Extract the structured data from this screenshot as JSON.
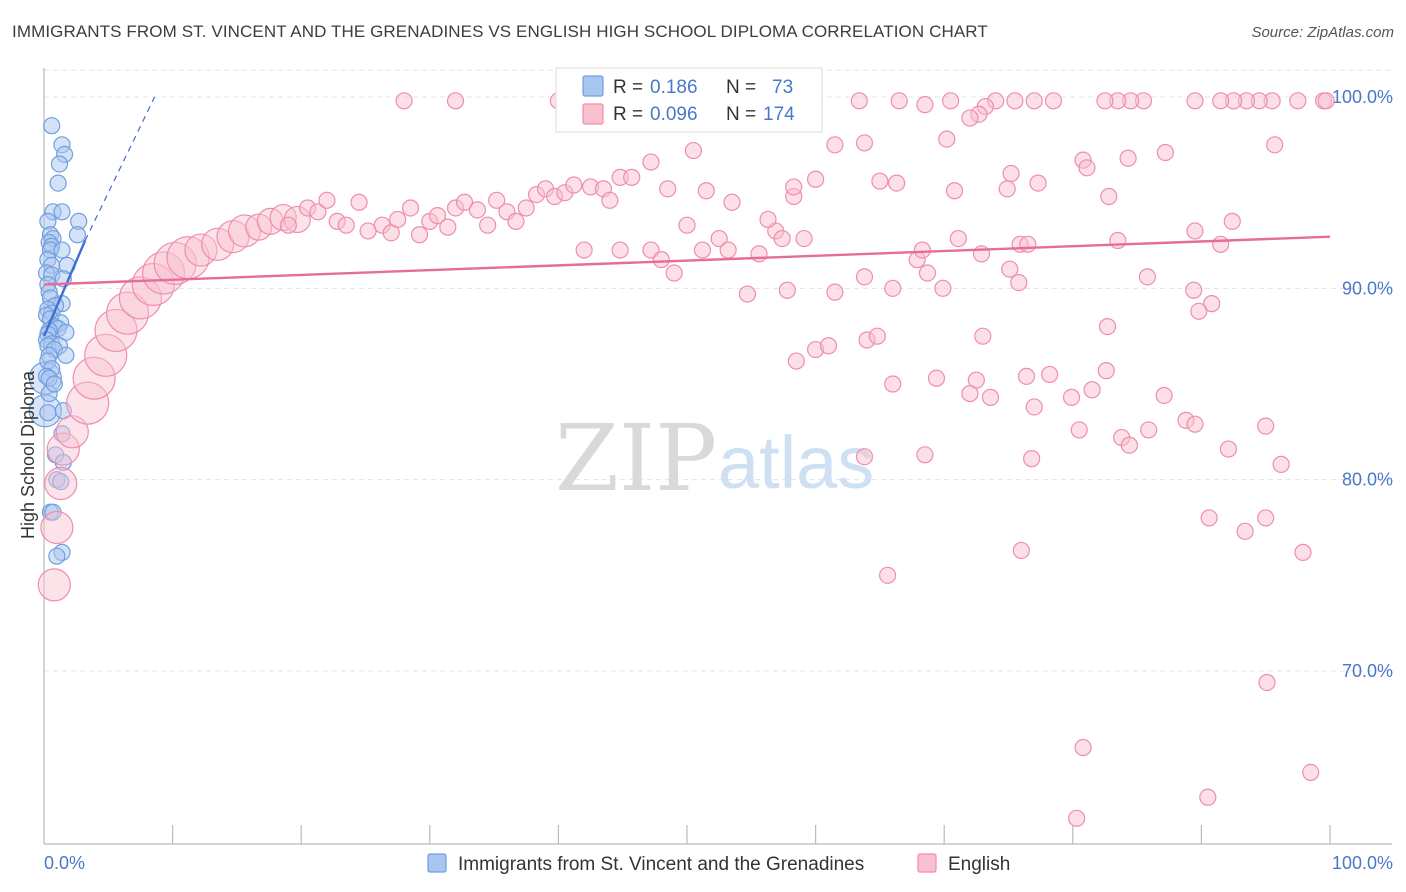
{
  "header": {
    "title": "IMMIGRANTS FROM ST. VINCENT AND THE GRENADINES VS ENGLISH HIGH SCHOOL DIPLOMA CORRELATION CHART",
    "source": "Source: ZipAtlas.com"
  },
  "watermark": {
    "zip": "ZIP",
    "atlas": "atlas"
  },
  "stats": [
    {
      "r_label": "R = ",
      "r_value": "0.186",
      "n_label": "N = ",
      "n_value": "73",
      "color": "#a9c6f0",
      "stroke": "#6f9fe0"
    },
    {
      "r_label": "R = ",
      "r_value": "0.096",
      "n_label": "N = ",
      "n_value": "174",
      "color": "#f9c0d0",
      "stroke": "#ee8eab"
    }
  ],
  "chart_data": {
    "type": "scatter",
    "title": "IMMIGRANTS FROM ST. VINCENT AND THE GRENADINES VS ENGLISH HIGH SCHOOL DIPLOMA CORRELATION CHART",
    "xlabel": "",
    "ylabel": "High School Diploma",
    "xlim": [
      0,
      100
    ],
    "ylim": [
      62,
      101.5
    ],
    "grid": true,
    "x_tick_labels": [
      {
        "value": 0,
        "label": "0.0%"
      },
      {
        "value": 100,
        "label": "100.0%"
      }
    ],
    "x_minor_ticks": [
      10,
      20,
      30,
      40,
      50,
      60,
      70,
      80,
      90
    ],
    "y_ticks": [
      {
        "value": 100,
        "label": "100.0%"
      },
      {
        "value": 90,
        "label": "90.0%"
      },
      {
        "value": 80,
        "label": "80.0%"
      },
      {
        "value": 70,
        "label": "70.0%"
      }
    ],
    "series": [
      {
        "name": "Immigrants from St. Vincent and the Grenadines",
        "color": "#6f9fe0",
        "fill": "#a9c6f0",
        "trend": {
          "x": [
            0,
            3.2
          ],
          "y": [
            87.5,
            92.5
          ],
          "color": "#3f6fd4"
        },
        "trend_ext": {
          "x": [
            3.2,
            8.6
          ],
          "y": [
            92.5,
            100
          ]
        },
        "points": [
          [
            0.6,
            98.5
          ],
          [
            1.4,
            97.5
          ],
          [
            1.6,
            97.0
          ],
          [
            1.2,
            96.5
          ],
          [
            1.1,
            95.5
          ],
          [
            0.7,
            94.0
          ],
          [
            1.4,
            94.0
          ],
          [
            2.7,
            93.5
          ],
          [
            0.3,
            93.5
          ],
          [
            2.6,
            92.8
          ],
          [
            0.5,
            92.8
          ],
          [
            0.7,
            92.6
          ],
          [
            0.4,
            92.4
          ],
          [
            0.6,
            92.2
          ],
          [
            0.5,
            92.0
          ],
          [
            1.4,
            92.0
          ],
          [
            0.3,
            91.5
          ],
          [
            0.6,
            91.2
          ],
          [
            1.8,
            91.2
          ],
          [
            0.2,
            90.8
          ],
          [
            0.6,
            90.7
          ],
          [
            1.5,
            90.5
          ],
          [
            0.3,
            90.2
          ],
          [
            0.4,
            89.8
          ],
          [
            0.5,
            89.5
          ],
          [
            1.4,
            89.2
          ],
          [
            0.9,
            89.1
          ],
          [
            0.3,
            88.9
          ],
          [
            0.6,
            88.7
          ],
          [
            0.2,
            88.6
          ],
          [
            0.5,
            88.4
          ],
          [
            1.3,
            88.2
          ],
          [
            0.8,
            88.0
          ],
          [
            1.1,
            87.9
          ],
          [
            0.4,
            87.8
          ],
          [
            1.7,
            87.7
          ],
          [
            0.3,
            87.6
          ],
          [
            0.2,
            87.3
          ],
          [
            0.6,
            87.1
          ],
          [
            0.3,
            87.0
          ],
          [
            1.2,
            87.0
          ],
          [
            0.8,
            86.8
          ],
          [
            0.4,
            86.5
          ],
          [
            1.7,
            86.5
          ],
          [
            0.3,
            86.2
          ],
          [
            0.6,
            85.8
          ],
          [
            0.2,
            85.4
          ],
          [
            0.4,
            85.3
          ],
          [
            1.5,
            83.6
          ],
          [
            0.3,
            83.5
          ],
          [
            1.4,
            82.4
          ],
          [
            0.9,
            81.3
          ],
          [
            1.5,
            80.9
          ],
          [
            1.0,
            80.0
          ],
          [
            1.3,
            79.9
          ],
          [
            0.5,
            78.3
          ],
          [
            0.7,
            78.3
          ],
          [
            1.4,
            76.2
          ],
          [
            1.0,
            76.0
          ],
          [
            0.4,
            84.5
          ],
          [
            0.8,
            85.0
          ]
        ],
        "large_points": [
          {
            "x": 0.1,
            "y": 85.3,
            "size": "l"
          },
          {
            "x": 0.1,
            "y": 83.6,
            "size": "l"
          }
        ]
      },
      {
        "name": "English",
        "color": "#ee8eab",
        "fill": "#f9c0d0",
        "trend": {
          "x": [
            0,
            100
          ],
          "y": [
            90.2,
            92.7
          ],
          "color": "#e66d98"
        },
        "large_points": [
          {
            "x": 0.8,
            "y": 74.5,
            "size": "l"
          },
          {
            "x": 1.0,
            "y": 77.5,
            "size": "l"
          },
          {
            "x": 1.3,
            "y": 79.8,
            "size": "l"
          },
          {
            "x": 1.5,
            "y": 81.6,
            "size": "l"
          },
          {
            "x": 2.2,
            "y": 82.5,
            "size": "l"
          },
          {
            "x": 3.4,
            "y": 84.0,
            "size": "xl"
          },
          {
            "x": 3.9,
            "y": 85.3,
            "size": "xl"
          },
          {
            "x": 4.8,
            "y": 86.5,
            "size": "xl"
          },
          {
            "x": 5.6,
            "y": 87.8,
            "size": "xl"
          },
          {
            "x": 6.5,
            "y": 88.7,
            "size": "xl"
          },
          {
            "x": 7.5,
            "y": 89.5,
            "size": "xl"
          },
          {
            "x": 8.5,
            "y": 90.2,
            "size": "xl"
          },
          {
            "x": 9.3,
            "y": 90.8,
            "size": "xl"
          },
          {
            "x": 10.2,
            "y": 91.3,
            "size": "xl"
          },
          {
            "x": 11.2,
            "y": 91.6,
            "size": "xl"
          },
          {
            "x": 12.2,
            "y": 92.0,
            "size": "l"
          },
          {
            "x": 13.5,
            "y": 92.3,
            "size": "l"
          },
          {
            "x": 14.7,
            "y": 92.7,
            "size": "l"
          },
          {
            "x": 15.6,
            "y": 93.0,
            "size": "l"
          },
          {
            "x": 16.7,
            "y": 93.2,
            "size": "m"
          },
          {
            "x": 17.6,
            "y": 93.5,
            "size": "m"
          },
          {
            "x": 18.6,
            "y": 93.7,
            "size": "m"
          },
          {
            "x": 19.7,
            "y": 93.6,
            "size": "m"
          }
        ],
        "points": [
          [
            19.0,
            93.3
          ],
          [
            20.5,
            94.2
          ],
          [
            21.3,
            94.0
          ],
          [
            22.0,
            94.6
          ],
          [
            22.8,
            93.5
          ],
          [
            23.5,
            93.3
          ],
          [
            24.5,
            94.5
          ],
          [
            25.2,
            93.0
          ],
          [
            26.3,
            93.3
          ],
          [
            27.0,
            92.9
          ],
          [
            27.5,
            93.6
          ],
          [
            28.5,
            94.2
          ],
          [
            29.2,
            92.8
          ],
          [
            30.0,
            93.5
          ],
          [
            30.6,
            93.8
          ],
          [
            31.4,
            93.2
          ],
          [
            32.0,
            94.2
          ],
          [
            32.7,
            94.5
          ],
          [
            33.7,
            94.1
          ],
          [
            34.5,
            93.3
          ],
          [
            35.2,
            94.6
          ],
          [
            36.0,
            94.0
          ],
          [
            36.7,
            93.5
          ],
          [
            37.5,
            94.2
          ],
          [
            38.3,
            94.9
          ],
          [
            39.0,
            95.2
          ],
          [
            39.7,
            94.8
          ],
          [
            40.5,
            95.0
          ],
          [
            41.2,
            95.4
          ],
          [
            42.5,
            95.3
          ],
          [
            43.5,
            95.2
          ],
          [
            44.0,
            94.6
          ],
          [
            44.8,
            95.8
          ],
          [
            45.7,
            95.8
          ],
          [
            47.2,
            96.6
          ],
          [
            48.5,
            95.2
          ],
          [
            50.5,
            97.2
          ],
          [
            51.5,
            95.1
          ],
          [
            53.5,
            94.5
          ],
          [
            50.0,
            93.3
          ],
          [
            52.5,
            92.6
          ],
          [
            51.2,
            92.0
          ],
          [
            47.2,
            92.0
          ],
          [
            44.8,
            92.0
          ],
          [
            42.0,
            92.0
          ],
          [
            48.0,
            91.5
          ],
          [
            49.0,
            90.8
          ],
          [
            53.2,
            92.0
          ],
          [
            55.6,
            91.8
          ],
          [
            56.9,
            93.0
          ],
          [
            57.4,
            92.6
          ],
          [
            58.3,
            94.8
          ],
          [
            58.3,
            95.3
          ],
          [
            56.3,
            93.6
          ],
          [
            59.1,
            92.6
          ],
          [
            60.0,
            95.7
          ],
          [
            61.5,
            97.5
          ],
          [
            63.8,
            97.6
          ],
          [
            65.0,
            95.6
          ],
          [
            66.3,
            95.5
          ],
          [
            67.9,
            91.5
          ],
          [
            68.3,
            92.0
          ],
          [
            70.2,
            97.8
          ],
          [
            70.8,
            95.1
          ],
          [
            71.1,
            92.6
          ],
          [
            72.9,
            91.8
          ],
          [
            74.9,
            95.2
          ],
          [
            75.2,
            96.0
          ],
          [
            75.9,
            92.3
          ],
          [
            76.5,
            92.3
          ],
          [
            77.3,
            95.5
          ],
          [
            80.8,
            96.7
          ],
          [
            81.1,
            96.3
          ],
          [
            82.8,
            94.8
          ],
          [
            84.3,
            96.8
          ],
          [
            87.2,
            97.1
          ],
          [
            89.5,
            93.0
          ],
          [
            91.5,
            92.3
          ],
          [
            92.4,
            93.5
          ],
          [
            95.7,
            97.5
          ],
          [
            54.7,
            89.7
          ],
          [
            57.8,
            89.9
          ],
          [
            61.5,
            89.8
          ],
          [
            63.8,
            90.6
          ],
          [
            66.0,
            90.0
          ],
          [
            68.7,
            90.8
          ],
          [
            69.9,
            90.0
          ],
          [
            75.1,
            91.0
          ],
          [
            75.8,
            90.3
          ],
          [
            83.5,
            92.5
          ],
          [
            85.8,
            90.6
          ],
          [
            89.4,
            89.9
          ],
          [
            90.8,
            89.2
          ],
          [
            89.8,
            88.8
          ],
          [
            82.7,
            88.0
          ],
          [
            58.5,
            86.2
          ],
          [
            60.0,
            86.8
          ],
          [
            61.0,
            87.0
          ],
          [
            64.0,
            87.3
          ],
          [
            64.8,
            87.5
          ],
          [
            73.0,
            87.5
          ],
          [
            82.6,
            85.7
          ],
          [
            87.1,
            84.4
          ],
          [
            69.4,
            85.3
          ],
          [
            72.5,
            85.2
          ],
          [
            76.4,
            85.4
          ],
          [
            79.9,
            84.3
          ],
          [
            85.9,
            82.6
          ],
          [
            88.8,
            83.1
          ],
          [
            89.5,
            82.9
          ],
          [
            92.1,
            81.6
          ],
          [
            95.0,
            82.8
          ],
          [
            96.2,
            80.8
          ],
          [
            63.8,
            81.2
          ],
          [
            68.5,
            81.3
          ],
          [
            76.8,
            81.1
          ],
          [
            83.8,
            82.2
          ],
          [
            76.0,
            76.3
          ],
          [
            81.5,
            84.7
          ],
          [
            73.6,
            84.3
          ],
          [
            77.0,
            83.8
          ],
          [
            90.6,
            78.0
          ],
          [
            93.4,
            77.3
          ],
          [
            97.9,
            76.2
          ],
          [
            65.6,
            75.0
          ],
          [
            66.0,
            85.0
          ],
          [
            78.2,
            85.5
          ],
          [
            80.5,
            82.6
          ],
          [
            84.4,
            81.8
          ],
          [
            72.0,
            84.5
          ],
          [
            95.0,
            78.0
          ],
          [
            95.1,
            69.4
          ],
          [
            98.5,
            64.7
          ],
          [
            80.8,
            66.0
          ],
          [
            80.3,
            62.3
          ],
          [
            90.5,
            63.4
          ],
          [
            99.5,
            99.8
          ],
          [
            99.7,
            99.8
          ],
          [
            97.5,
            99.8
          ],
          [
            95.5,
            99.8
          ],
          [
            94.5,
            99.8
          ],
          [
            93.5,
            99.8
          ],
          [
            92.5,
            99.8
          ],
          [
            91.5,
            99.8
          ],
          [
            89.5,
            99.8
          ],
          [
            85.5,
            99.8
          ],
          [
            84.5,
            99.8
          ],
          [
            83.5,
            99.8
          ],
          [
            82.5,
            99.8
          ],
          [
            78.5,
            99.8
          ],
          [
            77.0,
            99.8
          ],
          [
            75.5,
            99.8
          ],
          [
            74.0,
            99.8
          ],
          [
            73.2,
            99.5
          ],
          [
            72.7,
            99.1
          ],
          [
            70.5,
            99.8
          ],
          [
            66.5,
            99.8
          ],
          [
            63.4,
            99.8
          ],
          [
            58.0,
            99.8
          ],
          [
            56.5,
            99.8
          ],
          [
            55.0,
            99.8
          ],
          [
            53.5,
            99.8
          ],
          [
            52.0,
            99.8
          ],
          [
            47.0,
            99.8
          ],
          [
            44.0,
            99.8
          ],
          [
            40.0,
            99.8
          ],
          [
            32.0,
            99.8
          ],
          [
            28.0,
            99.8
          ],
          [
            68.5,
            99.6
          ],
          [
            72.0,
            98.9
          ]
        ]
      }
    ]
  },
  "legend": {
    "items": [
      {
        "label": "Immigrants from St. Vincent and the Grenadines",
        "fill": "#a9c6f0",
        "stroke": "#6f9fe0"
      },
      {
        "label": "English",
        "fill": "#f9c0d0",
        "stroke": "#ee8eab"
      }
    ]
  }
}
